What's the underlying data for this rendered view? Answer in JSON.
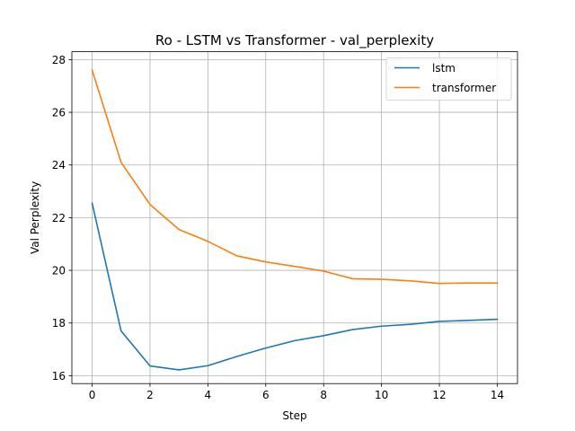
{
  "chart_data": {
    "type": "line",
    "title": "Ro - LSTM vs Transformer - val_perplexity",
    "xlabel": "Step",
    "ylabel": "Val Perplexity",
    "xlim": [
      -0.7,
      14.7
    ],
    "ylim": [
      15.7,
      28.3
    ],
    "xticks": [
      0,
      2,
      4,
      6,
      8,
      10,
      12,
      14
    ],
    "yticks": [
      16,
      18,
      20,
      22,
      24,
      26,
      28
    ],
    "grid": true,
    "legend_position": "top-right",
    "x": [
      0,
      1,
      2,
      3,
      4,
      5,
      6,
      7,
      8,
      9,
      10,
      11,
      12,
      13,
      14
    ],
    "series": [
      {
        "name": "lstm",
        "color": "#1f77b4",
        "values": [
          22.55,
          17.7,
          16.37,
          16.22,
          16.38,
          16.73,
          17.05,
          17.33,
          17.52,
          17.75,
          17.88,
          17.95,
          18.06,
          18.1,
          18.14
        ]
      },
      {
        "name": "transformer",
        "color": "#ff7f0e",
        "values": [
          27.6,
          24.1,
          22.5,
          21.55,
          21.1,
          20.55,
          20.32,
          20.15,
          19.97,
          19.68,
          19.66,
          19.6,
          19.5,
          19.52,
          19.52
        ]
      }
    ]
  }
}
